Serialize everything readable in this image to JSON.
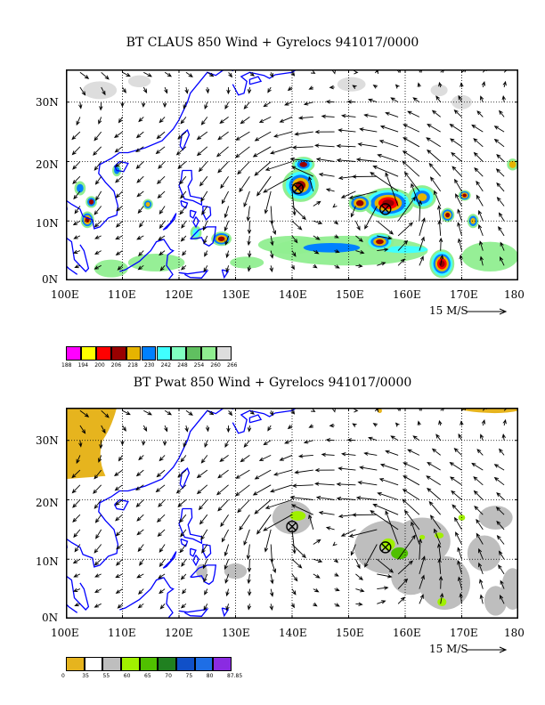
{
  "panels": [
    {
      "title": "BT CLAUS 850 Wind + Gyrelocs 941017/0000",
      "field": "CLAUS brightness temperature",
      "lat_labels": [
        "30N",
        "20N",
        "10N",
        "0N"
      ],
      "lon_labels": [
        "100E",
        "110E",
        "120E",
        "130E",
        "140E",
        "150E",
        "160E",
        "170E",
        "180"
      ],
      "vector_scale_label": "15 M/S",
      "colorbar": {
        "labels": [
          "188",
          "194",
          "200",
          "206",
          "218",
          "230",
          "242",
          "248",
          "254",
          "260",
          "266"
        ],
        "colors": [
          "#ff00ff",
          "#ffff00",
          "#ff0000",
          "#990000",
          "#e6b400",
          "#0080ff",
          "#40ffff",
          "#80ffc0",
          "#60c060",
          "#90ee90",
          "#dddddd"
        ]
      },
      "gyre_locations": [
        {
          "lon": 141,
          "lat": 15.5
        },
        {
          "lon": 156.5,
          "lat": 12
        }
      ]
    },
    {
      "title": "BT Pwat 850 Wind + Gyrelocs 941017/0000",
      "field": "Precipitable water",
      "lat_labels": [
        "30N",
        "20N",
        "10N",
        "0N"
      ],
      "lon_labels": [
        "100E",
        "110E",
        "120E",
        "130E",
        "140E",
        "150E",
        "160E",
        "170E",
        "180"
      ],
      "vector_scale_label": "15 M/S",
      "colorbar": {
        "labels": [
          "0",
          "35",
          "55",
          "60",
          "65",
          "70",
          "75",
          "80",
          "87.85"
        ],
        "colors": [
          "#e6b41e",
          "#ffffff",
          "#bebebe",
          "#a0f000",
          "#50c000",
          "#208020",
          "#1050c8",
          "#1e6ee6",
          "#8a2be2"
        ]
      },
      "gyre_locations": [
        {
          "lon": 140,
          "lat": 15.5
        },
        {
          "lon": 156.5,
          "lat": 12
        }
      ]
    }
  ],
  "colors": {
    "coastline": "#0000ff",
    "grid": "#000000",
    "arrow": "#000000"
  }
}
